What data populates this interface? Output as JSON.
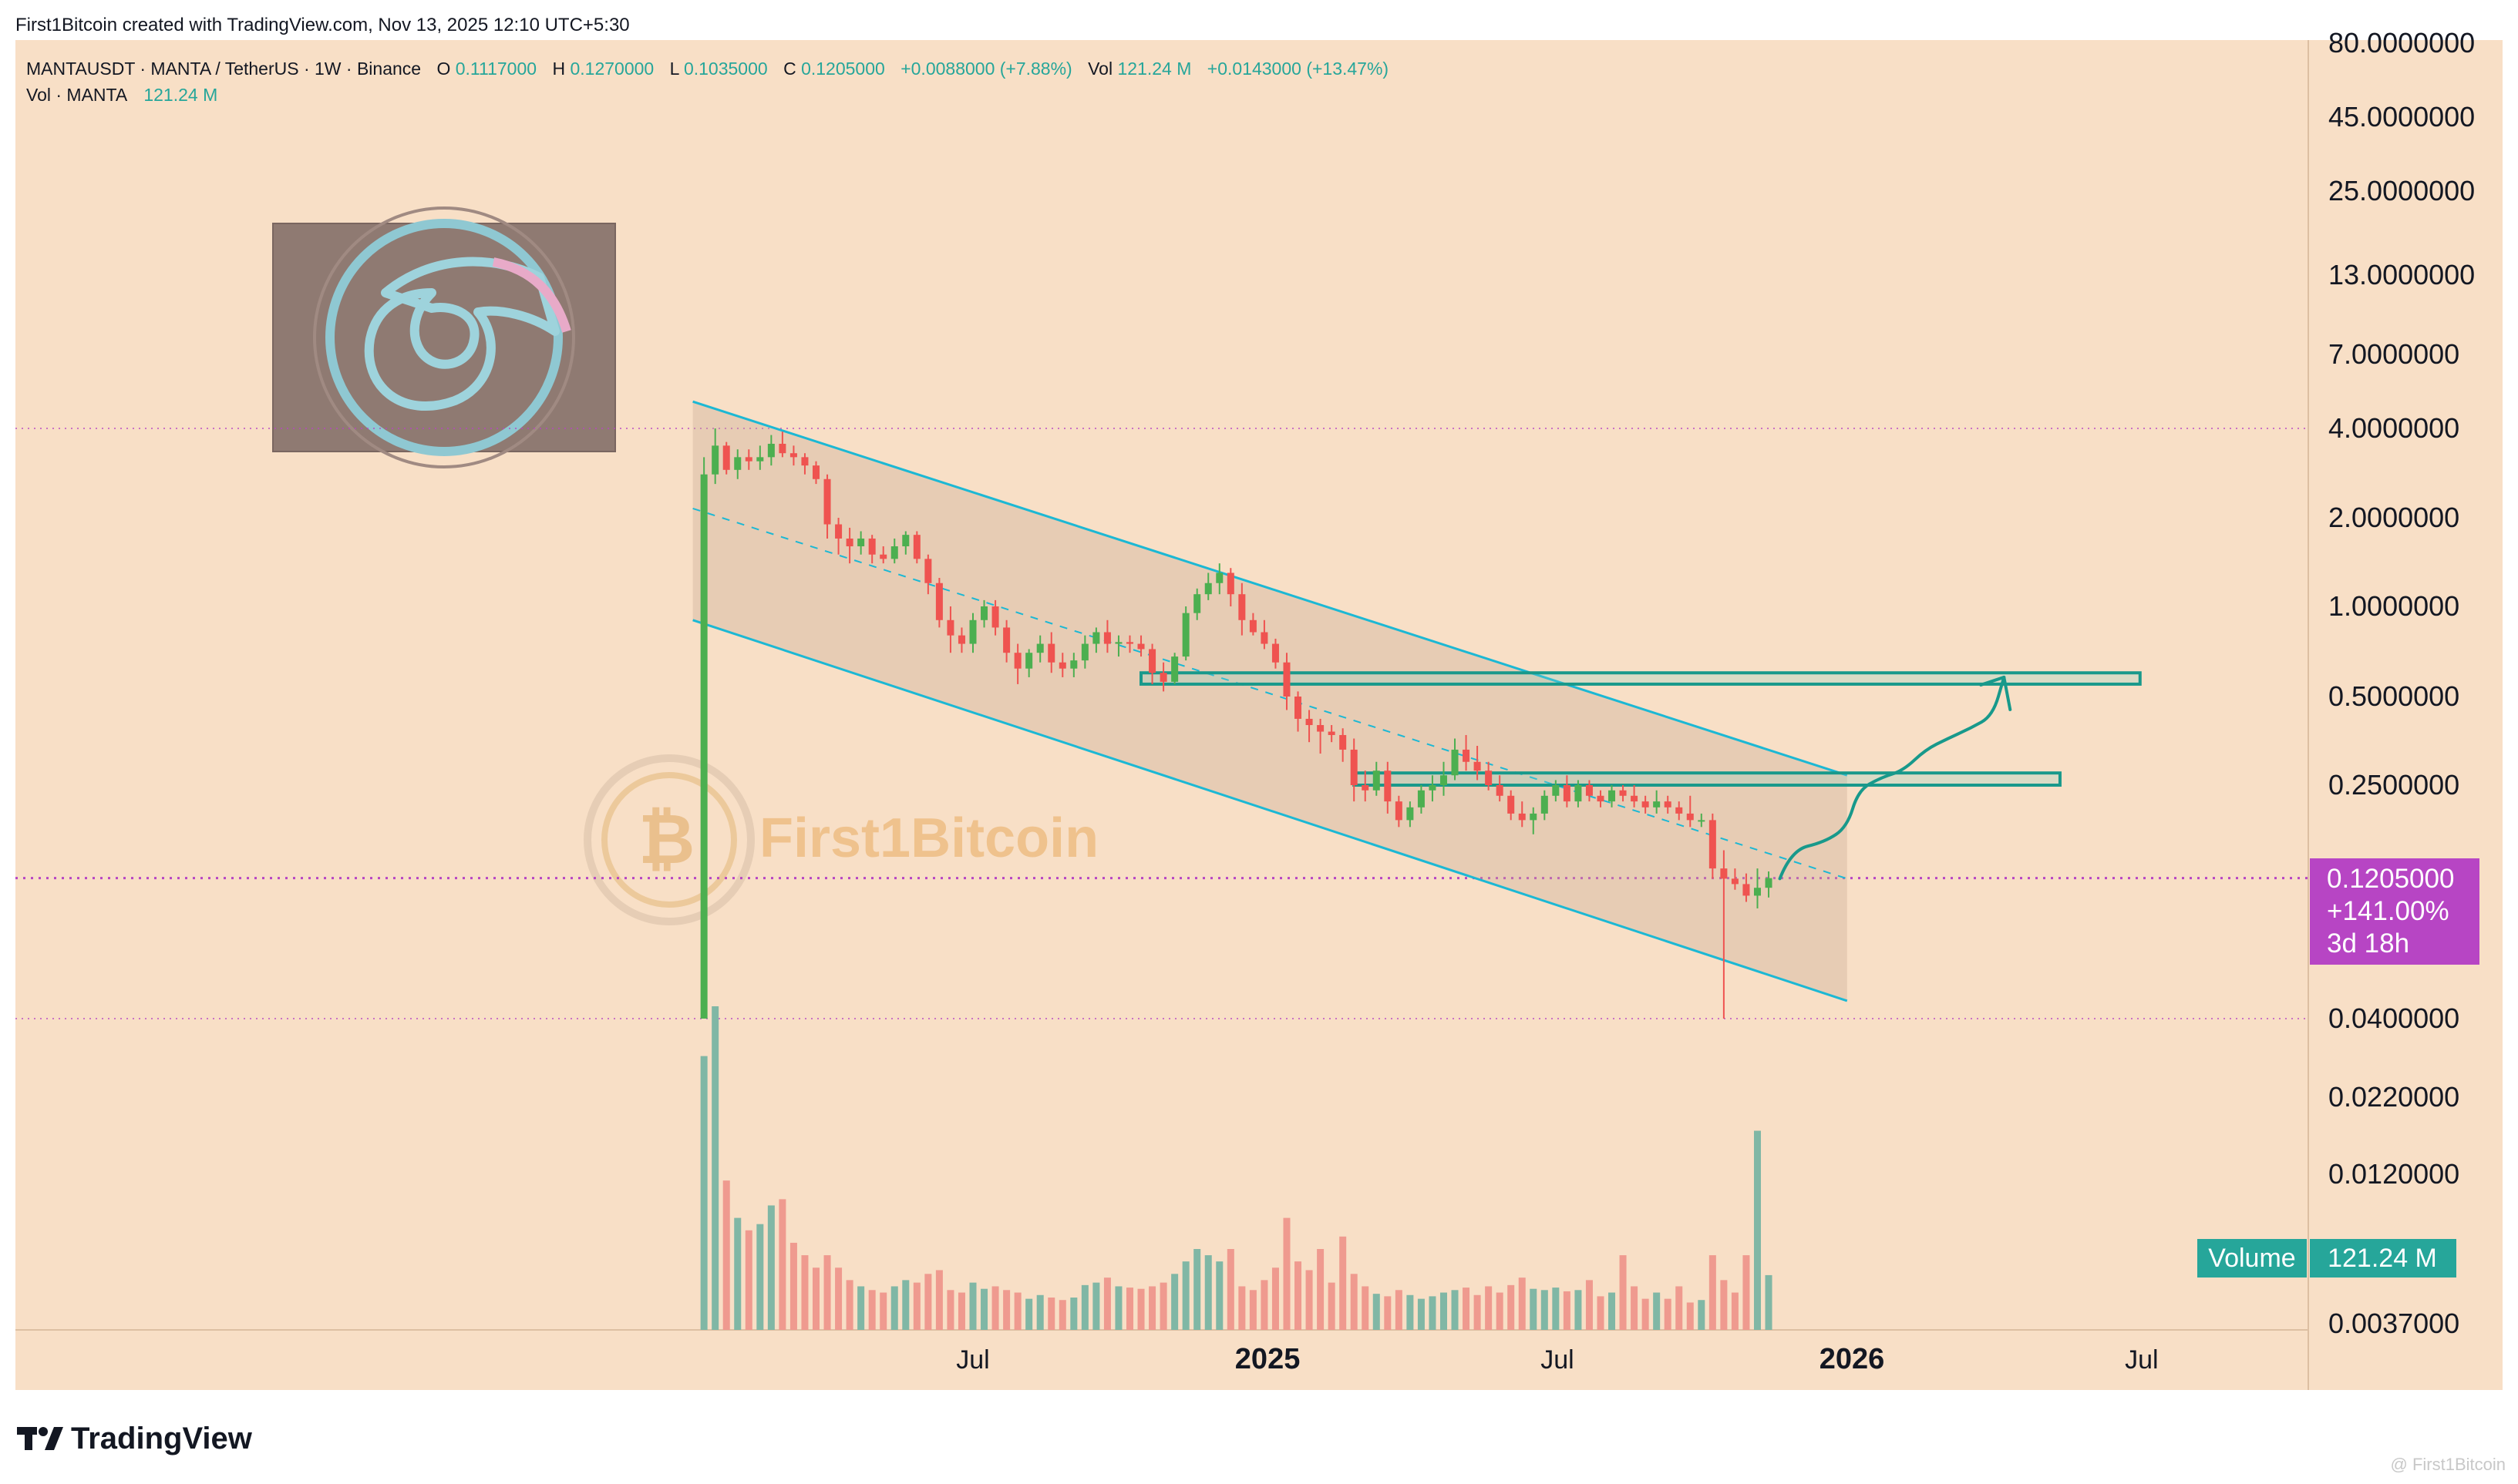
{
  "header": {
    "created_by": "First1Bitcoin created with TradingView.com, Nov 13, 2025 12:10 UTC+5:30"
  },
  "legend": {
    "symbol": "MANTAUSDT · MANTA / TetherUS · 1W · Binance",
    "open_label": "O",
    "open": "0.1117000",
    "high_label": "H",
    "high": "0.1270000",
    "low_label": "L",
    "low": "0.1035000",
    "close_label": "C",
    "close": "0.1205000",
    "change": "+0.0088000 (+7.88%)",
    "vol_label": "Vol",
    "vol": "121.24 M",
    "vol_change": "+0.0143000 (+13.47%)",
    "vol_line_label": "Vol · MANTA",
    "vol_line_value": "121.24 M"
  },
  "watermark": {
    "text": "First1Bitcoin"
  },
  "price_tag": {
    "price": "0.1205000",
    "change_pct": "+141.00%",
    "countdown": "3d 18h"
  },
  "volume_tag": {
    "label": "Volume",
    "value": "121.24 M"
  },
  "footer": {
    "brand": "TradingView",
    "corner_text": "@ First1Bitcoin"
  },
  "colors": {
    "background": "#f8dfc6",
    "up": "#4caf50",
    "down": "#ef5350",
    "vol_up": "#80b7a5",
    "vol_down": "#ef9a8f",
    "channel": "#1cb8d4",
    "zone": "#18998b",
    "tag": "#b745c4",
    "vol_tag": "#26a69a"
  },
  "chart_data": {
    "type": "candlestick",
    "symbol": "MANTAUSDT",
    "interval": "1W",
    "y_scale": "log",
    "ylim": [
      0.0037,
      80
    ],
    "y_ticks": [
      "80.0000000",
      "45.0000000",
      "25.0000000",
      "13.0000000",
      "7.0000000",
      "4.0000000",
      "2.0000000",
      "1.0000000",
      "0.5000000",
      "0.2500000",
      "0.0400000",
      "0.0220000",
      "0.0120000",
      "0.0037000"
    ],
    "y_tick_values": [
      80,
      45,
      25,
      13,
      7,
      4,
      2,
      1,
      0.5,
      0.25,
      0.04,
      0.022,
      0.012,
      0.0037
    ],
    "x_ticks": [
      "Jul",
      "2025",
      "Jul",
      "2026",
      "Jul"
    ],
    "x_tick_dates": [
      "2024-07-01",
      "2025-01-01",
      "2025-07-01",
      "2026-01-01",
      "2026-07-01"
    ],
    "x_tick_bold": [
      false,
      true,
      false,
      true,
      false
    ],
    "candles": [
      {
        "date": "2024-01-15",
        "o": 0.04,
        "h": 3.2,
        "l": 0.04,
        "c": 2.8,
        "v": 22
      },
      {
        "date": "2024-01-22",
        "o": 2.8,
        "h": 4.0,
        "l": 2.6,
        "c": 3.5,
        "v": 26
      },
      {
        "date": "2024-01-29",
        "o": 3.5,
        "h": 3.6,
        "l": 2.8,
        "c": 2.9,
        "v": 12
      },
      {
        "date": "2024-02-05",
        "o": 2.9,
        "h": 3.4,
        "l": 2.7,
        "c": 3.2,
        "v": 9
      },
      {
        "date": "2024-02-12",
        "o": 3.2,
        "h": 3.4,
        "l": 2.9,
        "c": 3.1,
        "v": 8
      },
      {
        "date": "2024-02-19",
        "o": 3.1,
        "h": 3.5,
        "l": 2.9,
        "c": 3.2,
        "v": 8.5
      },
      {
        "date": "2024-02-26",
        "o": 3.2,
        "h": 3.8,
        "l": 3.0,
        "c": 3.55,
        "v": 10
      },
      {
        "date": "2024-03-04",
        "o": 3.55,
        "h": 3.9,
        "l": 3.2,
        "c": 3.3,
        "v": 10.5
      },
      {
        "date": "2024-03-11",
        "o": 3.3,
        "h": 3.5,
        "l": 3.0,
        "c": 3.2,
        "v": 7
      },
      {
        "date": "2024-03-18",
        "o": 3.2,
        "h": 3.3,
        "l": 2.8,
        "c": 3.0,
        "v": 6
      },
      {
        "date": "2024-03-25",
        "o": 3.0,
        "h": 3.1,
        "l": 2.6,
        "c": 2.7,
        "v": 5
      },
      {
        "date": "2024-04-01",
        "o": 2.7,
        "h": 2.8,
        "l": 1.7,
        "c": 1.9,
        "v": 6
      },
      {
        "date": "2024-04-08",
        "o": 1.9,
        "h": 2.0,
        "l": 1.5,
        "c": 1.7,
        "v": 5
      },
      {
        "date": "2024-04-15",
        "o": 1.7,
        "h": 1.85,
        "l": 1.4,
        "c": 1.6,
        "v": 4
      },
      {
        "date": "2024-04-22",
        "o": 1.6,
        "h": 1.8,
        "l": 1.5,
        "c": 1.7,
        "v": 3.5
      },
      {
        "date": "2024-04-29",
        "o": 1.7,
        "h": 1.75,
        "l": 1.4,
        "c": 1.5,
        "v": 3.2
      },
      {
        "date": "2024-05-06",
        "o": 1.5,
        "h": 1.6,
        "l": 1.4,
        "c": 1.45,
        "v": 3.0
      },
      {
        "date": "2024-05-13",
        "o": 1.45,
        "h": 1.7,
        "l": 1.4,
        "c": 1.6,
        "v": 3.5
      },
      {
        "date": "2024-05-20",
        "o": 1.6,
        "h": 1.8,
        "l": 1.5,
        "c": 1.75,
        "v": 4
      },
      {
        "date": "2024-05-27",
        "o": 1.75,
        "h": 1.8,
        "l": 1.4,
        "c": 1.45,
        "v": 3.8
      },
      {
        "date": "2024-06-03",
        "o": 1.45,
        "h": 1.5,
        "l": 1.1,
        "c": 1.2,
        "v": 4.5
      },
      {
        "date": "2024-06-10",
        "o": 1.2,
        "h": 1.25,
        "l": 0.85,
        "c": 0.9,
        "v": 4.8
      },
      {
        "date": "2024-06-17",
        "o": 0.9,
        "h": 1.0,
        "l": 0.7,
        "c": 0.8,
        "v": 3.2
      },
      {
        "date": "2024-06-24",
        "o": 0.8,
        "h": 0.85,
        "l": 0.7,
        "c": 0.75,
        "v": 3.0
      },
      {
        "date": "2024-07-01",
        "o": 0.75,
        "h": 0.95,
        "l": 0.7,
        "c": 0.9,
        "v": 3.8
      },
      {
        "date": "2024-07-08",
        "o": 0.9,
        "h": 1.05,
        "l": 0.85,
        "c": 1.0,
        "v": 3.3
      },
      {
        "date": "2024-07-15",
        "o": 1.0,
        "h": 1.05,
        "l": 0.8,
        "c": 0.85,
        "v": 3.5
      },
      {
        "date": "2024-07-22",
        "o": 0.85,
        "h": 0.9,
        "l": 0.65,
        "c": 0.7,
        "v": 3.2
      },
      {
        "date": "2024-07-29",
        "o": 0.7,
        "h": 0.75,
        "l": 0.55,
        "c": 0.62,
        "v": 3.0
      },
      {
        "date": "2024-08-05",
        "o": 0.62,
        "h": 0.72,
        "l": 0.58,
        "c": 0.7,
        "v": 2.5
      },
      {
        "date": "2024-08-12",
        "o": 0.7,
        "h": 0.8,
        "l": 0.65,
        "c": 0.75,
        "v": 2.8
      },
      {
        "date": "2024-08-19",
        "o": 0.75,
        "h": 0.82,
        "l": 0.6,
        "c": 0.65,
        "v": 2.6
      },
      {
        "date": "2024-08-26",
        "o": 0.65,
        "h": 0.7,
        "l": 0.58,
        "c": 0.62,
        "v": 2.4
      },
      {
        "date": "2024-09-02",
        "o": 0.62,
        "h": 0.7,
        "l": 0.58,
        "c": 0.66,
        "v": 2.6
      },
      {
        "date": "2024-09-09",
        "o": 0.66,
        "h": 0.8,
        "l": 0.62,
        "c": 0.75,
        "v": 3.6
      },
      {
        "date": "2024-09-16",
        "o": 0.75,
        "h": 0.85,
        "l": 0.7,
        "c": 0.82,
        "v": 3.8
      },
      {
        "date": "2024-09-23",
        "o": 0.82,
        "h": 0.9,
        "l": 0.7,
        "c": 0.75,
        "v": 4.2
      },
      {
        "date": "2024-09-30",
        "o": 0.75,
        "h": 0.8,
        "l": 0.68,
        "c": 0.76,
        "v": 3.5
      },
      {
        "date": "2024-10-07",
        "o": 0.76,
        "h": 0.8,
        "l": 0.7,
        "c": 0.75,
        "v": 3.4
      },
      {
        "date": "2024-10-14",
        "o": 0.75,
        "h": 0.8,
        "l": 0.68,
        "c": 0.72,
        "v": 3.3
      },
      {
        "date": "2024-10-21",
        "o": 0.72,
        "h": 0.75,
        "l": 0.55,
        "c": 0.6,
        "v": 3.5
      },
      {
        "date": "2024-10-28",
        "o": 0.6,
        "h": 0.65,
        "l": 0.52,
        "c": 0.56,
        "v": 3.8
      },
      {
        "date": "2024-11-04",
        "o": 0.56,
        "h": 0.7,
        "l": 0.55,
        "c": 0.68,
        "v": 4.5
      },
      {
        "date": "2024-11-11",
        "o": 0.68,
        "h": 1.0,
        "l": 0.66,
        "c": 0.95,
        "v": 5.5
      },
      {
        "date": "2024-11-18",
        "o": 0.95,
        "h": 1.15,
        "l": 0.9,
        "c": 1.1,
        "v": 6.5
      },
      {
        "date": "2024-11-25",
        "o": 1.1,
        "h": 1.3,
        "l": 1.05,
        "c": 1.2,
        "v": 6
      },
      {
        "date": "2024-12-02",
        "o": 1.2,
        "h": 1.4,
        "l": 1.1,
        "c": 1.3,
        "v": 5.5
      },
      {
        "date": "2024-12-09",
        "o": 1.3,
        "h": 1.35,
        "l": 1.0,
        "c": 1.1,
        "v": 6.5
      },
      {
        "date": "2024-12-16",
        "o": 1.1,
        "h": 1.2,
        "l": 0.8,
        "c": 0.9,
        "v": 3.5
      },
      {
        "date": "2024-12-23",
        "o": 0.9,
        "h": 0.95,
        "l": 0.8,
        "c": 0.82,
        "v": 3.2
      },
      {
        "date": "2024-12-30",
        "o": 0.82,
        "h": 0.9,
        "l": 0.72,
        "c": 0.75,
        "v": 4.0
      },
      {
        "date": "2025-01-06",
        "o": 0.75,
        "h": 0.78,
        "l": 0.62,
        "c": 0.65,
        "v": 5.0
      },
      {
        "date": "2025-01-13",
        "o": 0.65,
        "h": 0.7,
        "l": 0.45,
        "c": 0.5,
        "v": 9
      },
      {
        "date": "2025-01-20",
        "o": 0.5,
        "h": 0.52,
        "l": 0.38,
        "c": 0.42,
        "v": 5.5
      },
      {
        "date": "2025-01-27",
        "o": 0.42,
        "h": 0.45,
        "l": 0.35,
        "c": 0.4,
        "v": 4.8
      },
      {
        "date": "2025-02-03",
        "o": 0.4,
        "h": 0.42,
        "l": 0.32,
        "c": 0.38,
        "v": 6.5
      },
      {
        "date": "2025-02-10",
        "o": 0.38,
        "h": 0.4,
        "l": 0.35,
        "c": 0.37,
        "v": 3.8
      },
      {
        "date": "2025-02-17",
        "o": 0.37,
        "h": 0.39,
        "l": 0.3,
        "c": 0.33,
        "v": 7.5
      },
      {
        "date": "2025-02-24",
        "o": 0.33,
        "h": 0.36,
        "l": 0.22,
        "c": 0.25,
        "v": 4.5
      },
      {
        "date": "2025-03-03",
        "o": 0.25,
        "h": 0.28,
        "l": 0.22,
        "c": 0.24,
        "v": 3.5
      },
      {
        "date": "2025-03-10",
        "o": 0.24,
        "h": 0.3,
        "l": 0.23,
        "c": 0.28,
        "v": 2.9
      },
      {
        "date": "2025-03-17",
        "o": 0.28,
        "h": 0.3,
        "l": 0.2,
        "c": 0.22,
        "v": 2.7
      },
      {
        "date": "2025-03-24",
        "o": 0.22,
        "h": 0.23,
        "l": 0.18,
        "c": 0.19,
        "v": 3.2
      },
      {
        "date": "2025-03-31",
        "o": 0.19,
        "h": 0.22,
        "l": 0.18,
        "c": 0.21,
        "v": 2.8
      },
      {
        "date": "2025-04-07",
        "o": 0.21,
        "h": 0.25,
        "l": 0.2,
        "c": 0.24,
        "v": 2.5
      },
      {
        "date": "2025-04-14",
        "o": 0.24,
        "h": 0.27,
        "l": 0.22,
        "c": 0.25,
        "v": 2.7
      },
      {
        "date": "2025-04-21",
        "o": 0.25,
        "h": 0.3,
        "l": 0.23,
        "c": 0.27,
        "v": 3.0
      },
      {
        "date": "2025-04-28",
        "o": 0.27,
        "h": 0.36,
        "l": 0.26,
        "c": 0.33,
        "v": 3.2
      },
      {
        "date": "2025-05-05",
        "o": 0.33,
        "h": 0.37,
        "l": 0.28,
        "c": 0.3,
        "v": 3.4
      },
      {
        "date": "2025-05-12",
        "o": 0.3,
        "h": 0.34,
        "l": 0.26,
        "c": 0.28,
        "v": 2.8
      },
      {
        "date": "2025-05-19",
        "o": 0.28,
        "h": 0.3,
        "l": 0.24,
        "c": 0.25,
        "v": 3.5
      },
      {
        "date": "2025-05-26",
        "o": 0.25,
        "h": 0.27,
        "l": 0.22,
        "c": 0.23,
        "v": 3.0
      },
      {
        "date": "2025-06-02",
        "o": 0.23,
        "h": 0.24,
        "l": 0.19,
        "c": 0.2,
        "v": 3.6
      },
      {
        "date": "2025-06-09",
        "o": 0.2,
        "h": 0.22,
        "l": 0.18,
        "c": 0.19,
        "v": 4.2
      },
      {
        "date": "2025-06-16",
        "o": 0.19,
        "h": 0.21,
        "l": 0.17,
        "c": 0.2,
        "v": 3.3
      },
      {
        "date": "2025-06-23",
        "o": 0.2,
        "h": 0.24,
        "l": 0.19,
        "c": 0.23,
        "v": 3.2
      },
      {
        "date": "2025-06-30",
        "o": 0.23,
        "h": 0.26,
        "l": 0.22,
        "c": 0.25,
        "v": 3.4
      },
      {
        "date": "2025-07-07",
        "o": 0.25,
        "h": 0.27,
        "l": 0.21,
        "c": 0.22,
        "v": 3.1
      },
      {
        "date": "2025-07-14",
        "o": 0.22,
        "h": 0.26,
        "l": 0.21,
        "c": 0.25,
        "v": 3.2
      },
      {
        "date": "2025-07-21",
        "o": 0.25,
        "h": 0.26,
        "l": 0.22,
        "c": 0.23,
        "v": 4.0
      },
      {
        "date": "2025-07-28",
        "o": 0.23,
        "h": 0.24,
        "l": 0.21,
        "c": 0.22,
        "v": 2.7
      },
      {
        "date": "2025-08-04",
        "o": 0.22,
        "h": 0.25,
        "l": 0.21,
        "c": 0.24,
        "v": 3.0
      },
      {
        "date": "2025-08-11",
        "o": 0.24,
        "h": 0.25,
        "l": 0.22,
        "c": 0.23,
        "v": 6.0
      },
      {
        "date": "2025-08-18",
        "o": 0.23,
        "h": 0.25,
        "l": 0.21,
        "c": 0.22,
        "v": 3.5
      },
      {
        "date": "2025-08-25",
        "o": 0.22,
        "h": 0.23,
        "l": 0.2,
        "c": 0.21,
        "v": 2.5
      },
      {
        "date": "2025-09-01",
        "o": 0.21,
        "h": 0.24,
        "l": 0.2,
        "c": 0.22,
        "v": 3.0
      },
      {
        "date": "2025-09-08",
        "o": 0.22,
        "h": 0.23,
        "l": 0.2,
        "c": 0.21,
        "v": 2.5
      },
      {
        "date": "2025-09-15",
        "o": 0.21,
        "h": 0.22,
        "l": 0.19,
        "c": 0.2,
        "v": 3.5
      },
      {
        "date": "2025-09-22",
        "o": 0.2,
        "h": 0.23,
        "l": 0.18,
        "c": 0.19,
        "v": 2.2
      },
      {
        "date": "2025-09-29",
        "o": 0.19,
        "h": 0.2,
        "l": 0.18,
        "c": 0.19,
        "v": 2.4
      },
      {
        "date": "2025-10-06",
        "o": 0.19,
        "h": 0.2,
        "l": 0.12,
        "c": 0.13,
        "v": 6.0
      },
      {
        "date": "2025-10-13",
        "o": 0.13,
        "h": 0.15,
        "l": 0.04,
        "c": 0.12,
        "v": 4.0
      },
      {
        "date": "2025-10-20",
        "o": 0.12,
        "h": 0.13,
        "l": 0.11,
        "c": 0.115,
        "v": 3.0
      },
      {
        "date": "2025-10-27",
        "o": 0.115,
        "h": 0.125,
        "l": 0.1,
        "c": 0.105,
        "v": 6.0
      },
      {
        "date": "2025-11-03",
        "o": 0.105,
        "h": 0.13,
        "l": 0.095,
        "c": 0.1117,
        "v": 16
      },
      {
        "date": "2025-11-10",
        "o": 0.1117,
        "h": 0.127,
        "l": 0.1035,
        "c": 0.1205,
        "v": 4.4
      }
    ],
    "annotations": {
      "channel_upper": [
        {
          "date": "2024-01-08",
          "price": 4.9
        },
        {
          "date": "2025-12-29",
          "price": 0.27
        }
      ],
      "channel_lower": [
        {
          "date": "2024-01-08",
          "price": 0.9
        },
        {
          "date": "2025-12-29",
          "price": 0.046
        }
      ],
      "channel_mid": [
        {
          "date": "2024-01-08",
          "price": 2.15
        },
        {
          "date": "2025-12-29",
          "price": 0.12
        }
      ],
      "resistance_zones": [
        {
          "from": "2024-10-14",
          "to": "2026-06-30",
          "low": 0.55,
          "high": 0.6
        },
        {
          "from": "2025-02-24",
          "to": "2026-05-11",
          "low": 0.25,
          "high": 0.275
        }
      ],
      "projection_path": [
        {
          "date": "2025-11-17",
          "price": 0.12
        },
        {
          "date": "2025-11-24",
          "price": 0.15
        },
        {
          "date": "2025-12-15",
          "price": 0.16
        },
        {
          "date": "2025-12-29",
          "price": 0.18
        },
        {
          "date": "2026-01-05",
          "price": 0.24
        },
        {
          "date": "2026-01-19",
          "price": 0.265
        },
        {
          "date": "2026-02-02",
          "price": 0.28
        },
        {
          "date": "2026-02-16",
          "price": 0.33
        },
        {
          "date": "2026-03-02",
          "price": 0.36
        },
        {
          "date": "2026-03-16",
          "price": 0.39
        },
        {
          "date": "2026-03-30",
          "price": 0.43
        },
        {
          "date": "2026-04-06",
          "price": 0.58
        }
      ],
      "dotted_levels": [
        4.0,
        0.04
      ],
      "last_price_line": 0.1205
    }
  }
}
